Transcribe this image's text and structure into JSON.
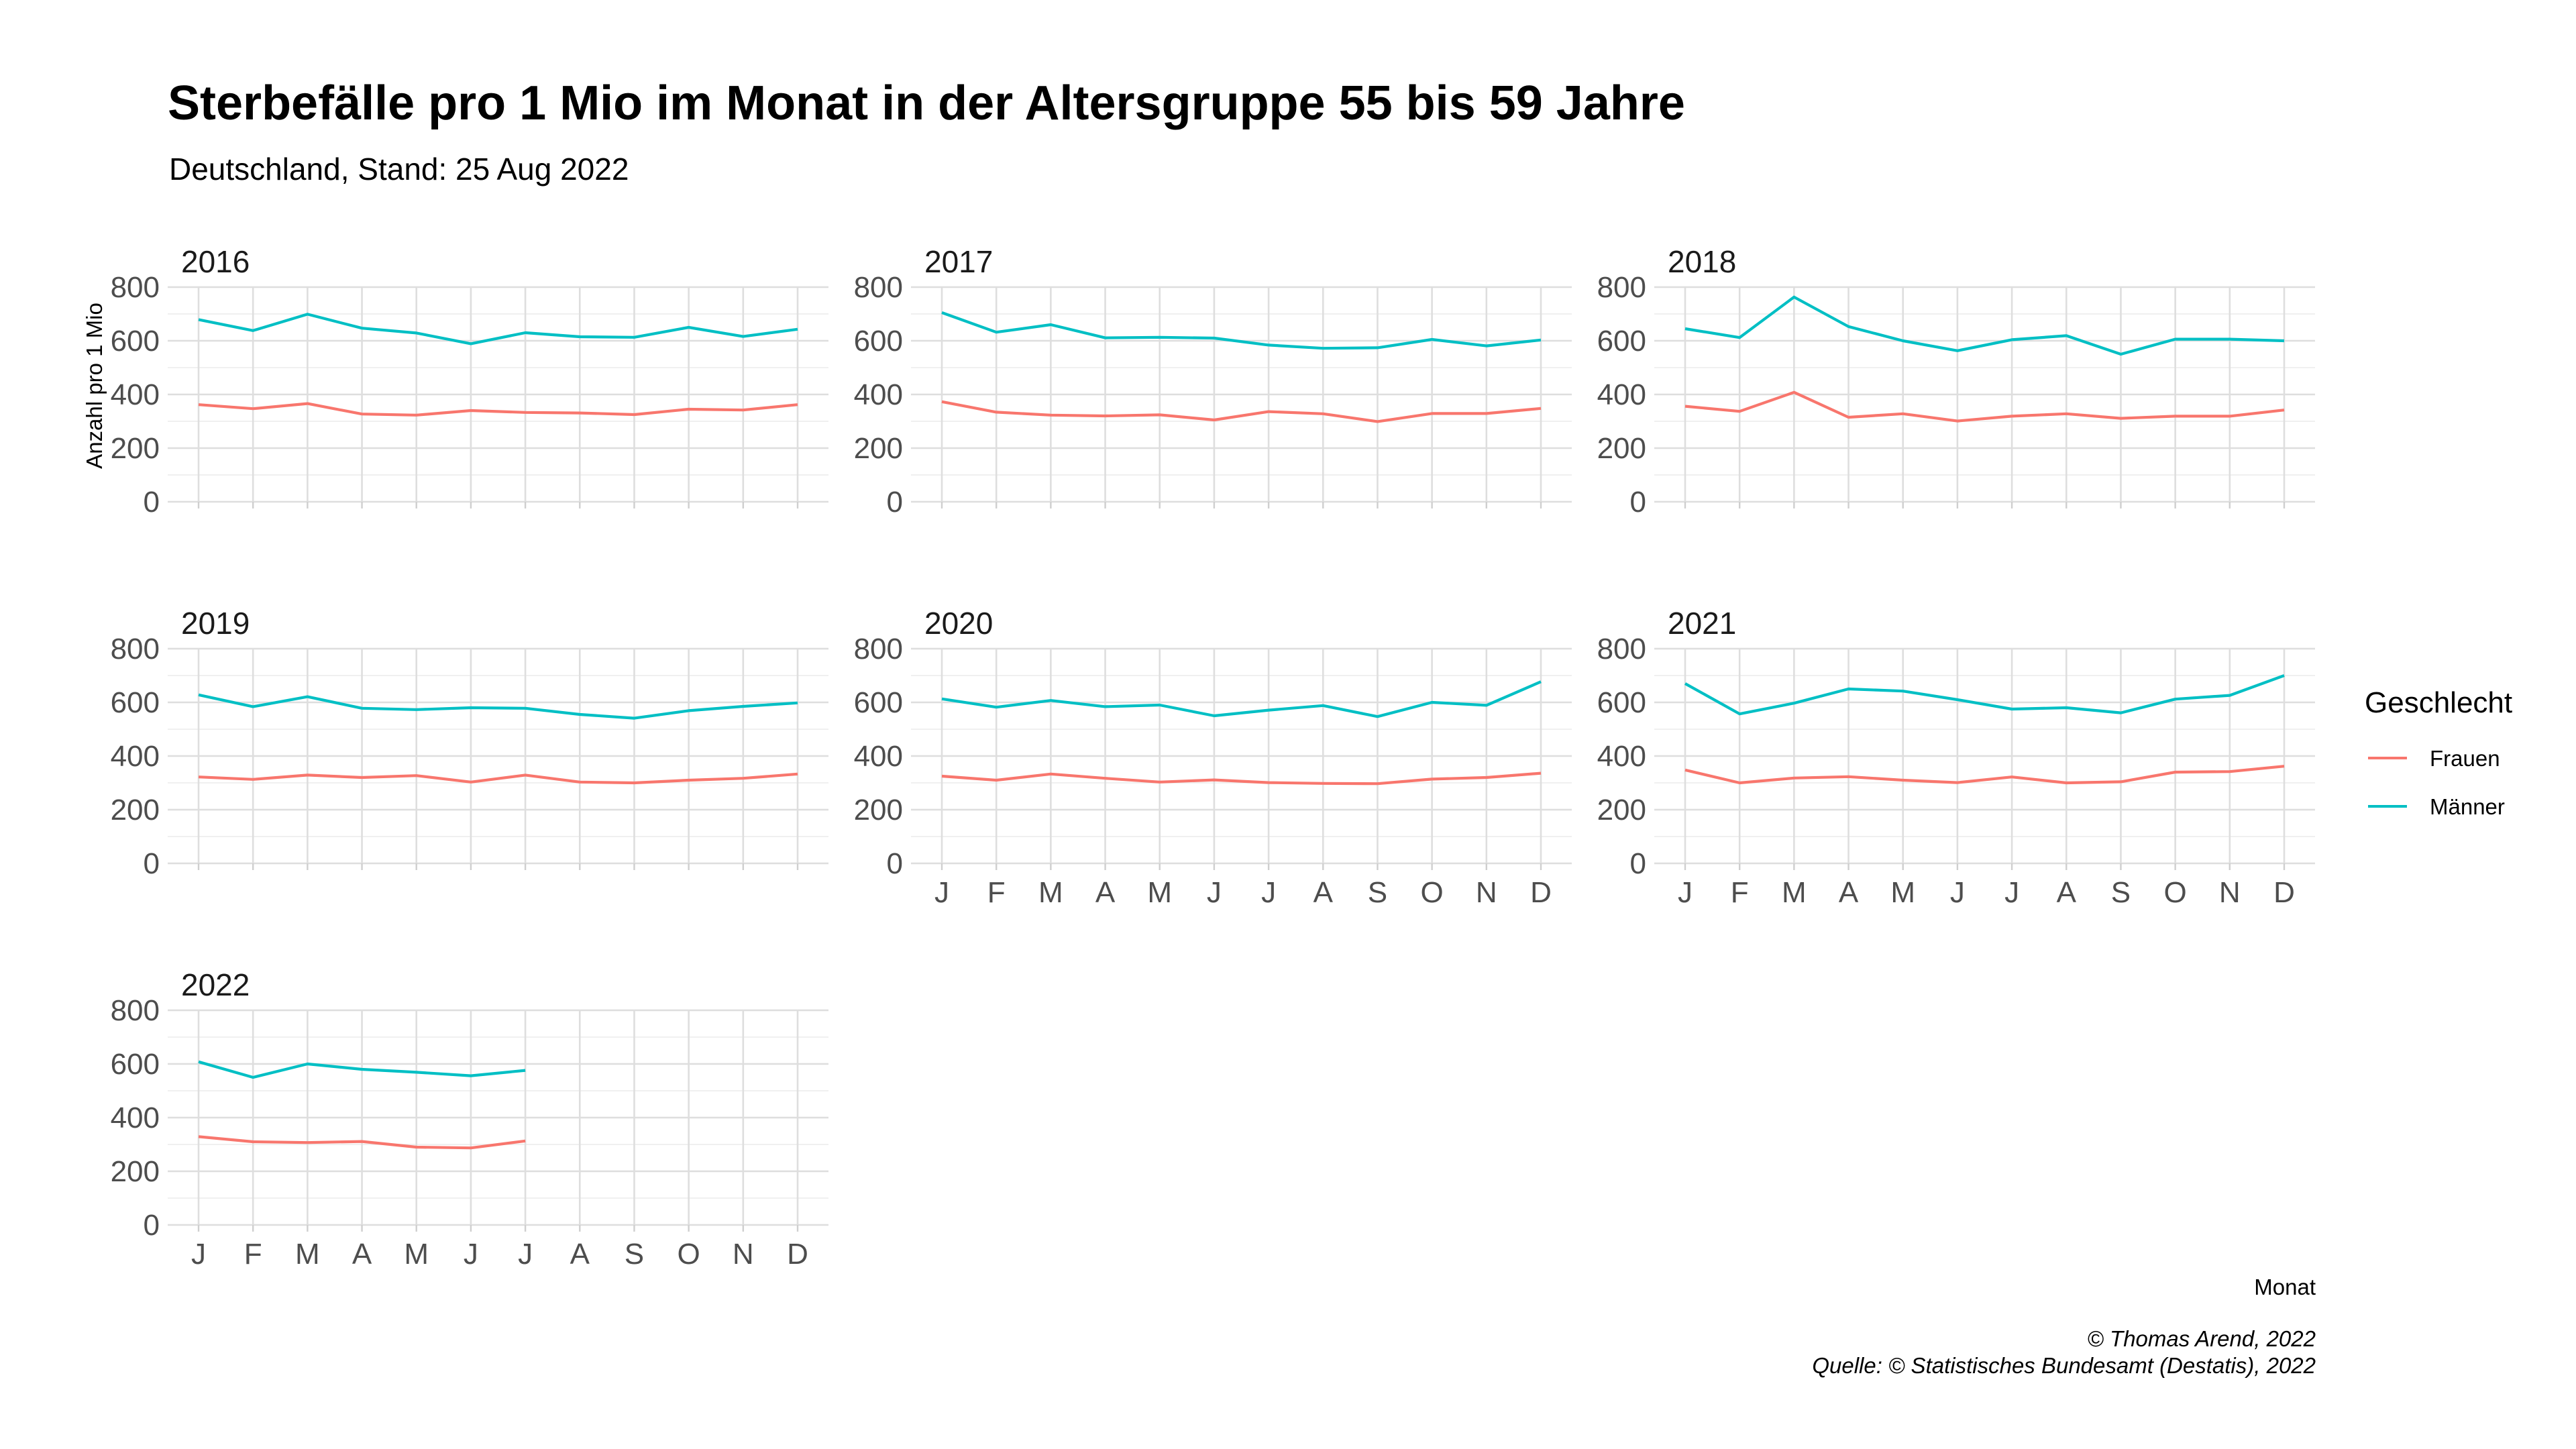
{
  "title": "Sterbefälle pro 1 Mio im Monat in der Altersgruppe 55 bis 59 Jahre",
  "subtitle": "Deutschland, Stand: 25 Aug 2022",
  "caption_lines": [
    "© Thomas Arend, 2022",
    "Quelle: © Statistisches Bundesamt (Destatis), 2022"
  ],
  "colors": {
    "Frauen": "#F8766D",
    "Männer": "#00BFC4"
  },
  "chart_data": {
    "type": "line",
    "xlabel": "Monat",
    "ylabel": "Anzahl pro 1 Mio",
    "categories": [
      "J",
      "F",
      "M",
      "A",
      "M",
      "J",
      "J",
      "A",
      "S",
      "O",
      "N",
      "D"
    ],
    "ylim": [
      0,
      800
    ],
    "yticks": [
      0,
      200,
      400,
      600,
      800
    ],
    "grid": true,
    "legend": {
      "title": "Geschlecht",
      "position": "right",
      "entries": [
        "Frauen",
        "Männer"
      ]
    },
    "facets": [
      {
        "label": "2016",
        "series": [
          {
            "name": "Frauen",
            "values": [
              362,
              347,
              366,
              327,
              323,
              340,
              333,
              331,
              325,
              345,
              342,
              362
            ]
          },
          {
            "name": "Männer",
            "values": [
              679,
              638,
              699,
              647,
              629,
              589,
              630,
              615,
              613,
              650,
              616,
              643
            ]
          }
        ]
      },
      {
        "label": "2017",
        "series": [
          {
            "name": "Frauen",
            "values": [
              373,
              334,
              323,
              320,
              324,
              305,
              336,
              328,
              299,
              329,
              329,
              348
            ]
          },
          {
            "name": "Männer",
            "values": [
              705,
              632,
              660,
              611,
              613,
              610,
              584,
              572,
              574,
              605,
              581,
              603
            ]
          }
        ]
      },
      {
        "label": "2018",
        "series": [
          {
            "name": "Frauen",
            "values": [
              356,
              337,
              408,
              315,
              328,
              301,
              319,
              328,
              311,
              319,
              319,
              342
            ]
          },
          {
            "name": "Männer",
            "values": [
              645,
              612,
              763,
              653,
              600,
              563,
              604,
              619,
              550,
              606,
              606,
              600
            ]
          }
        ]
      },
      {
        "label": "2019",
        "series": [
          {
            "name": "Frauen",
            "values": [
              322,
              313,
              329,
              320,
              327,
              303,
              329,
              303,
              300,
              310,
              317,
              333
            ]
          },
          {
            "name": "Männer",
            "values": [
              628,
              584,
              621,
              578,
              573,
              580,
              578,
              555,
              541,
              569,
              585,
              598
            ]
          }
        ]
      },
      {
        "label": "2020",
        "series": [
          {
            "name": "Frauen",
            "values": [
              325,
              310,
              333,
              317,
              303,
              311,
              301,
              298,
              297,
              314,
              320,
              336
            ]
          },
          {
            "name": "Männer",
            "values": [
              613,
              582,
              607,
              584,
              590,
              550,
              571,
              588,
              547,
              600,
              589,
              677
            ]
          }
        ]
      },
      {
        "label": "2021",
        "series": [
          {
            "name": "Frauen",
            "values": [
              348,
              300,
              318,
              323,
              310,
              301,
              322,
              300,
              304,
              340,
              342,
              362
            ]
          },
          {
            "name": "Männer",
            "values": [
              670,
              557,
              597,
              650,
              642,
              610,
              575,
              580,
              561,
              612,
              626,
              700
            ]
          }
        ]
      },
      {
        "label": "2022",
        "series": [
          {
            "name": "Frauen",
            "values": [
              329,
              310,
              307,
              311,
              290,
              287,
              313
            ]
          },
          {
            "name": "Männer",
            "values": [
              608,
              550,
              600,
              580,
              569,
              556,
              576
            ]
          }
        ]
      }
    ]
  }
}
